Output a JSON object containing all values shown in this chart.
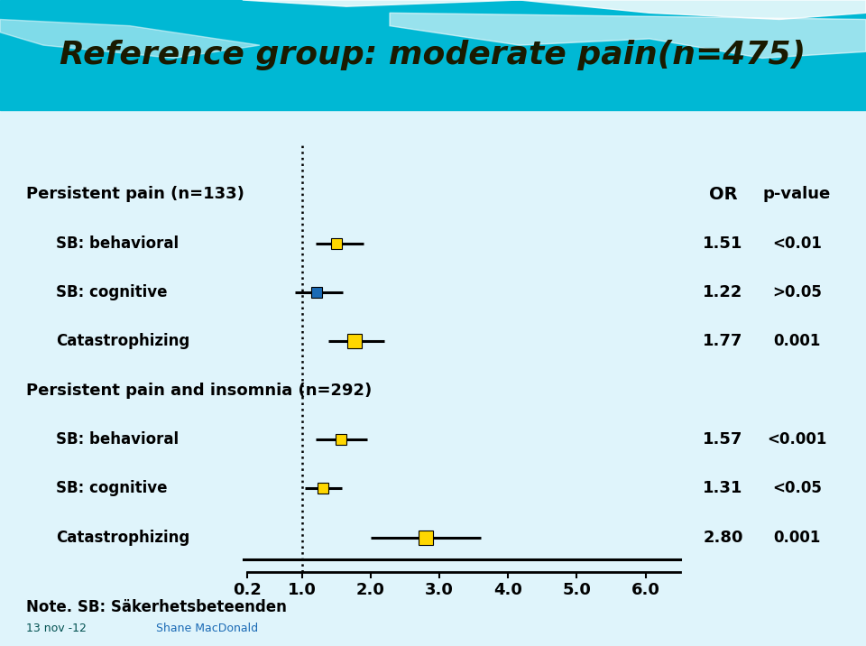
{
  "title": "Reference group: moderate pain(n=475)",
  "title_fontsize": 26,
  "bg_header_color": "#00b8d4",
  "bg_body_color": "#dff4fb",
  "xmin": 0.2,
  "xmax": 6.5,
  "xticks": [
    0.2,
    1.0,
    2.0,
    3.0,
    4.0,
    5.0,
    6.0
  ],
  "xticklabels": [
    "0.2",
    "1.0",
    "2.0",
    "3.0",
    "4.0",
    "5.0",
    "6.0"
  ],
  "reference_line_x": 1.0,
  "group1_label": "Persistent pain (n=133)",
  "group2_label": "Persistent pain and insomnia (n=292)",
  "rows": [
    {
      "label": "SB: behavioral",
      "or": 1.51,
      "or_str": "1.51",
      "ci_lo": 1.2,
      "ci_hi": 1.9,
      "pval": "<0.01",
      "color": "#FFD700",
      "group": 1
    },
    {
      "label": "SB: cognitive",
      "or": 1.22,
      "or_str": "1.22",
      "ci_lo": 0.9,
      "ci_hi": 1.6,
      "pval": ">0.05",
      "color": "#1a6ab5",
      "group": 1
    },
    {
      "label": "Catastrophizing",
      "or": 1.77,
      "or_str": "1.77",
      "ci_lo": 1.38,
      "ci_hi": 2.2,
      "pval": "0.001",
      "color": "#FFD700",
      "group": 1
    },
    {
      "label": "SB: behavioral",
      "or": 1.57,
      "or_str": "1.57",
      "ci_lo": 1.2,
      "ci_hi": 1.95,
      "pval": "<0.001",
      "color": "#FFD700",
      "group": 2
    },
    {
      "label": "SB: cognitive",
      "or": 1.31,
      "or_str": "1.31",
      "ci_lo": 1.05,
      "ci_hi": 1.58,
      "pval": "<0.05",
      "color": "#FFD700",
      "group": 2
    },
    {
      "label": "Catastrophizing",
      "or": 2.8,
      "or_str": "2.80",
      "ci_lo": 2.0,
      "ci_hi": 3.6,
      "pval": "0.001",
      "color": "#FFD700",
      "group": 2
    }
  ],
  "col_header_or": "OR",
  "col_header_pval": "p-value",
  "note_text": "Note. SB: Säkerhetsbeteenden",
  "date_text": "13 nov -12",
  "date_color": "#005050",
  "author_text": "Shane MacDonald",
  "author_color": "#1a6ab5"
}
